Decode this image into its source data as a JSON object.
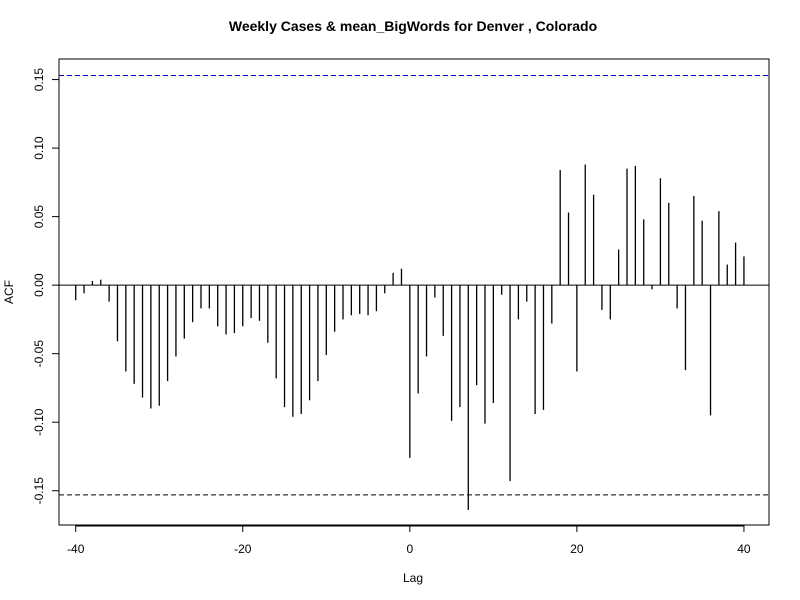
{
  "chart_data": {
    "type": "bar",
    "title": "Weekly Cases & mean_BigWords for Denver , Colorado",
    "xlabel": "Lag",
    "ylabel": "ACF",
    "xlim": [
      -42,
      43
    ],
    "ylim": [
      -0.175,
      0.165
    ],
    "x_ticks": [
      -40,
      -20,
      0,
      20,
      40
    ],
    "y_ticks": [
      -0.15,
      -0.1,
      -0.05,
      0.0,
      0.05,
      0.1,
      0.15
    ],
    "x_tick_labels": [
      "-40",
      "-20",
      "0",
      "20",
      "40"
    ],
    "y_tick_labels": [
      "-0.15",
      "-0.10",
      "-0.05",
      "0.00",
      "0.05",
      "0.10",
      "0.15"
    ],
    "confidence_bound": 0.153,
    "lags": [
      -40,
      -39,
      -38,
      -37,
      -36,
      -35,
      -34,
      -33,
      -32,
      -31,
      -30,
      -29,
      -28,
      -27,
      -26,
      -25,
      -24,
      -23,
      -22,
      -21,
      -20,
      -19,
      -18,
      -17,
      -16,
      -15,
      -14,
      -13,
      -12,
      -11,
      -10,
      -9,
      -8,
      -7,
      -6,
      -5,
      -4,
      -3,
      -2,
      -1,
      0,
      1,
      2,
      3,
      4,
      5,
      6,
      7,
      8,
      9,
      10,
      11,
      12,
      13,
      14,
      15,
      16,
      17,
      18,
      19,
      20,
      21,
      22,
      23,
      24,
      25,
      26,
      27,
      28,
      29,
      30,
      31,
      32,
      33,
      34,
      35,
      36,
      37,
      38,
      39,
      40
    ],
    "values": [
      -0.011,
      -0.006,
      0.003,
      0.004,
      -0.012,
      -0.041,
      -0.063,
      -0.072,
      -0.082,
      -0.09,
      -0.088,
      -0.07,
      -0.052,
      -0.039,
      -0.027,
      -0.017,
      -0.017,
      -0.03,
      -0.036,
      -0.035,
      -0.03,
      -0.024,
      -0.026,
      -0.042,
      -0.068,
      -0.089,
      -0.096,
      -0.094,
      -0.084,
      -0.07,
      -0.051,
      -0.034,
      -0.025,
      -0.022,
      -0.021,
      -0.022,
      -0.019,
      -0.006,
      0.009,
      0.012,
      -0.126,
      -0.079,
      -0.052,
      -0.009,
      -0.037,
      -0.099,
      -0.089,
      -0.164,
      -0.073,
      -0.101,
      -0.086,
      -0.007,
      -0.143,
      -0.025,
      -0.012,
      -0.094,
      -0.091,
      -0.028,
      0.084,
      0.053,
      -0.063,
      0.088,
      0.066,
      -0.018,
      -0.025,
      0.026,
      0.085,
      0.087,
      0.048,
      -0.003,
      0.078,
      0.06,
      -0.017,
      -0.062,
      0.065,
      0.047,
      -0.095,
      0.054,
      0.015,
      0.031,
      0.021
    ],
    "colors": {
      "bars": "#000000",
      "zero_line": "#000000",
      "upper_bound": "#0000cc",
      "lower_bound": "#000000"
    },
    "grid": false
  }
}
